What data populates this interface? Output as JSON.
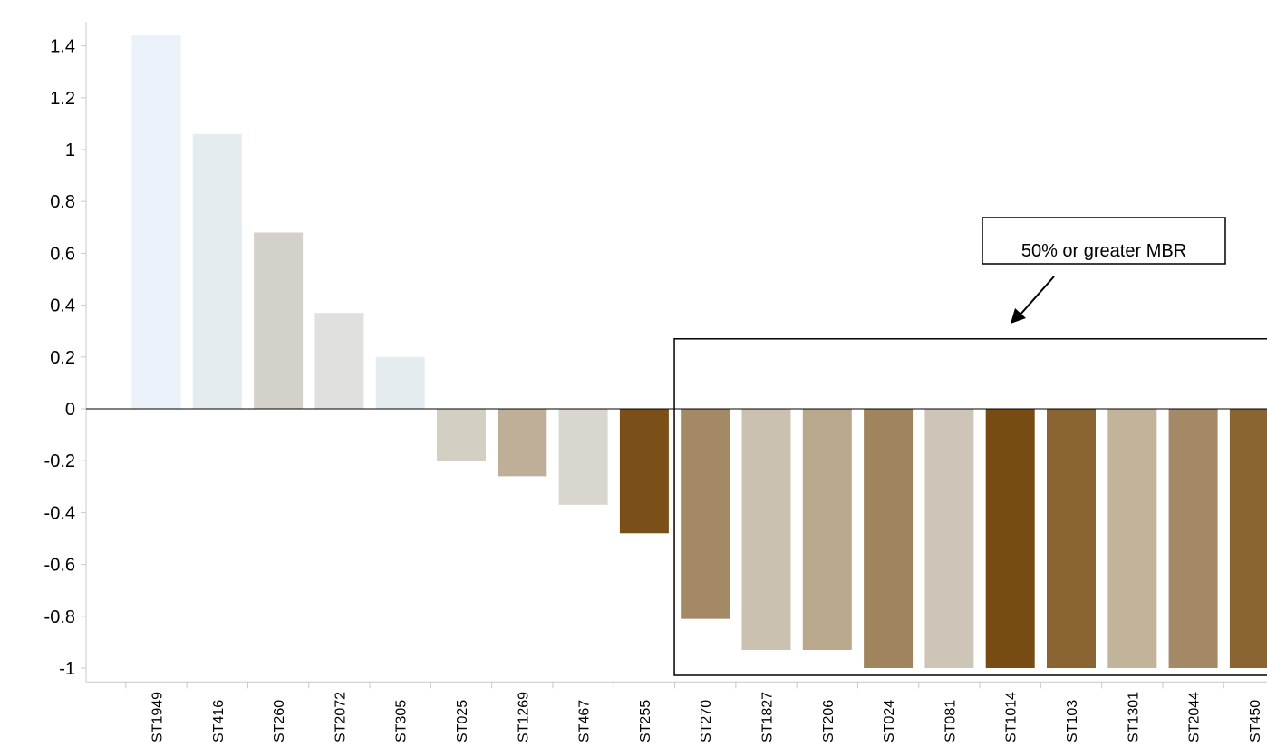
{
  "chart_data": {
    "type": "bar",
    "title": "",
    "xlabel": "",
    "ylabel": "",
    "ylim": [
      -1.05,
      1.45
    ],
    "yticks": [
      1.4,
      1.2,
      1,
      0.8,
      0.6,
      0.4,
      0.2,
      0,
      -0.2,
      -0.4,
      -0.6,
      -0.8,
      -1
    ],
    "grid": false,
    "legend": "none",
    "categories": [
      "ST1949",
      "ST416",
      "ST260",
      "ST2072",
      "ST305",
      "ST025",
      "ST1269",
      "ST467",
      "ST255",
      "ST270",
      "ST1827",
      "ST206",
      "ST024",
      "ST081",
      "ST1014",
      "ST103",
      "ST1301",
      "ST2044",
      "ST450"
    ],
    "values": [
      1.44,
      1.06,
      0.68,
      0.37,
      0.2,
      -0.2,
      -0.26,
      -0.37,
      -0.48,
      -0.81,
      -0.93,
      -0.93,
      -1.0,
      -1.0,
      -1.0,
      -1.0,
      -1.0,
      -1.0,
      -1.0
    ],
    "colors": [
      "#eaf1f9",
      "#e5ecef",
      "#d3d1c9",
      "#e0e0de",
      "#e4ecf0",
      "#d4cfc3",
      "#c0af98",
      "#d8d6cf",
      "#7b4f18",
      "#a38965",
      "#cac1b1",
      "#b9a88c",
      "#a0845e",
      "#cdc6b8",
      "#764c12",
      "#8a6433",
      "#c2b39b",
      "#a38965",
      "#8a6433"
    ],
    "annotations": [
      {
        "text": "50% or greater MBR",
        "type": "label-box-with-arrow"
      }
    ],
    "highlight_box": {
      "from_category": "ST270",
      "to_category": "ST450",
      "y_range": [
        -1.0,
        0.27
      ]
    }
  }
}
